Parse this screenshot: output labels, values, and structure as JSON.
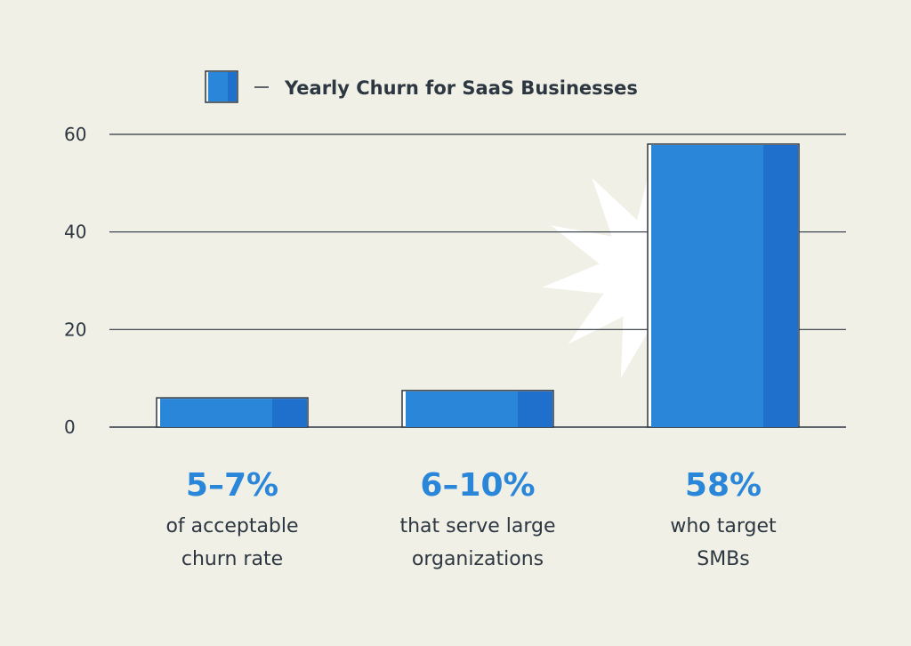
{
  "colors": {
    "background": "#f0f0e6",
    "bar_main": "#2a86d8",
    "bar_dark": "#1f6fcd",
    "outline": "#2d3741",
    "accent_text": "#2a86d8",
    "text": "#2d3741",
    "burst": "#ffffff"
  },
  "chart_data": {
    "type": "bar",
    "title": "Yearly Churn for SaaS Businesses",
    "legend": {
      "label": "Yearly Churn for SaaS Businesses",
      "position": "top-center"
    },
    "categories": [
      "of acceptable churn rate",
      "that serve large organizations",
      "who target SMBs"
    ],
    "values": [
      6,
      7.5,
      58
    ],
    "value_labels": [
      "5–7%",
      "6–10%",
      "58%"
    ],
    "category_lines": [
      [
        "of acceptable",
        "churn rate"
      ],
      [
        "that serve large",
        "organizations"
      ],
      [
        "who target",
        "SMBs"
      ]
    ],
    "yticks": [
      0,
      20,
      40,
      60
    ],
    "ylim": [
      0,
      60
    ],
    "grid": true,
    "highlight_index": 2,
    "xlabel": "",
    "ylabel": ""
  }
}
